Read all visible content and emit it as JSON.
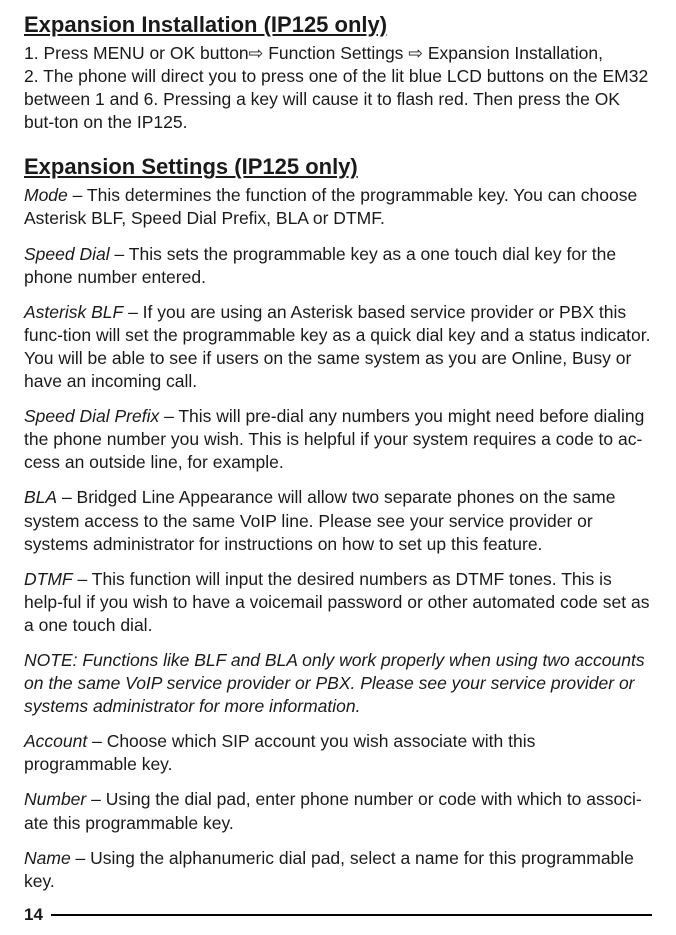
{
  "heading1": "Expansion Installation (IP125 only)",
  "install_line1_a": "1. Press MENU or OK button",
  "arrow1": "⇨",
  "install_line1_b": " Function Settings ",
  "arrow2": "⇨",
  "install_line1_c": " Expansion Installation,",
  "install_line2": "2. The phone will direct you to press one of the lit blue LCD buttons on the EM32 between 1 and 6.  Pressing a key will cause it to flash red.  Then press the OK but-ton on the IP125.",
  "heading2": "Expansion Settings (IP125 only)",
  "mode_label": "Mode",
  "mode_text": " – This determines the function of the programmable key.  You can choose Asterisk BLF, Speed Dial Prefix, BLA or DTMF.",
  "speeddial_label": "Speed Dial",
  "speeddial_text": " – This sets the programmable key as a one touch dial key for the phone number entered.",
  "asteriskblf_label": "Asterisk BLF",
  "asteriskblf_text": " – If you are using an Asterisk based service provider or PBX this func-tion will set the programmable key as a quick dial key and a status indicator.  You will be able to see if users on the same system as you are Online, Busy or have an incoming call.",
  "speeddialprefix_label": "Speed Dial Prefix",
  "speeddialprefix_text": " – This will pre-dial any numbers you might need before dialing the phone number you wish.  This is helpful if your system requires a code to ac-cess an outside line, for example.",
  "bla_label": "BLA",
  "bla_text": " – Bridged Line Appearance will allow two separate phones on the same system access to the same VoIP line.  Please see your service provider or systems administrator for instructions on how to set up this feature.",
  "dtmf_label": "DTMF",
  "dtmf_text": " – This function will input the desired numbers as DTMF tones.  This is help-ful if you wish to have a voicemail password or other automated code set as a one touch dial.",
  "note_text": "NOTE:  Functions like BLF and BLA only work properly when using two accounts on the same VoIP service provider or PBX.  Please see your service provider or systems administrator for more information.",
  "account_label": "Account",
  "account_text": " – Choose which SIP account you wish associate with this programmable key.",
  "number_label": "Number",
  "number_text": " – Using the dial pad, enter phone number or code with which to associ-ate this programmable key.",
  "name_label": "Name",
  "name_text": " – Using the alphanumeric dial pad, select a name for this programmable key.",
  "page_number": "14"
}
